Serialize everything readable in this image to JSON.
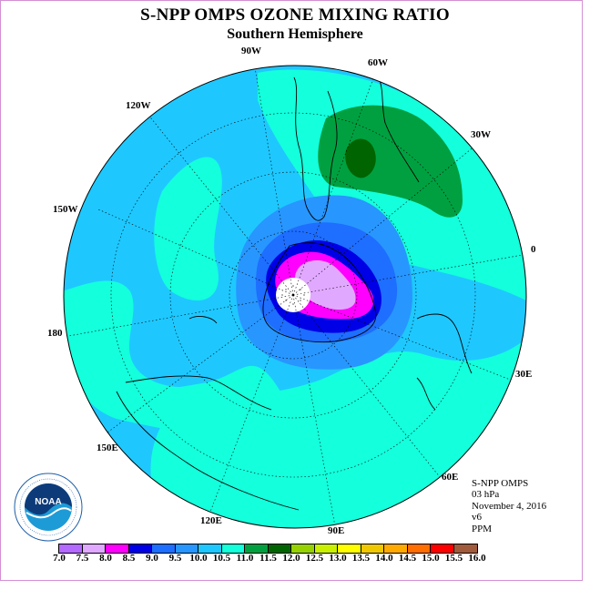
{
  "title": "S-NPP OMPS OZONE MIXING RATIO",
  "subtitle": "Southern Hemisphere",
  "longitude_labels": {
    "lon_90w": "90W",
    "lon_60w": "60W",
    "lon_30w": "30W",
    "lon_120w": "120W",
    "lon_150w": "150W",
    "lon_0": "0",
    "lon_180": "180",
    "lon_30e": "30E",
    "lon_150e": "150E",
    "lon_60e": "60E",
    "lon_120e": "120E",
    "lon_90e": "90E"
  },
  "info": {
    "instrument": "S-NPP OMPS",
    "pressure_level": "03 hPa",
    "date": "November 4, 2016",
    "version": "v6",
    "units": "PPM"
  },
  "logo": {
    "text": "NOAA",
    "ring_text": "NATIONAL OCEANIC AND ATMOSPHERIC ADMINISTRATION U.S. DEPARTMENT OF COMMERCE"
  },
  "colorbar": {
    "labels": [
      "7.0",
      "7.5",
      "8.0",
      "8.5",
      "9.0",
      "9.5",
      "10.0",
      "10.5",
      "11.0",
      "11.5",
      "12.0",
      "12.5",
      "13.0",
      "13.5",
      "14.0",
      "14.5",
      "15.0",
      "15.5",
      "16.0"
    ],
    "colors": [
      "#b469ff",
      "#e1a8ff",
      "#ff00ff",
      "#0000e6",
      "#1e6eff",
      "#2896ff",
      "#1ec8ff",
      "#14ffdc",
      "#00a040",
      "#006400",
      "#96d200",
      "#c8f000",
      "#ffff00",
      "#f0c800",
      "#ffaa00",
      "#ff6e00",
      "#ff0000",
      "#a05a3c"
    ]
  },
  "colors": {
    "background_field": "#1ec8ff",
    "ocean_mid": "#14ffdc",
    "high_green": "#00a040",
    "peak_green": "#006400",
    "core_low": "#e1a8ff"
  }
}
